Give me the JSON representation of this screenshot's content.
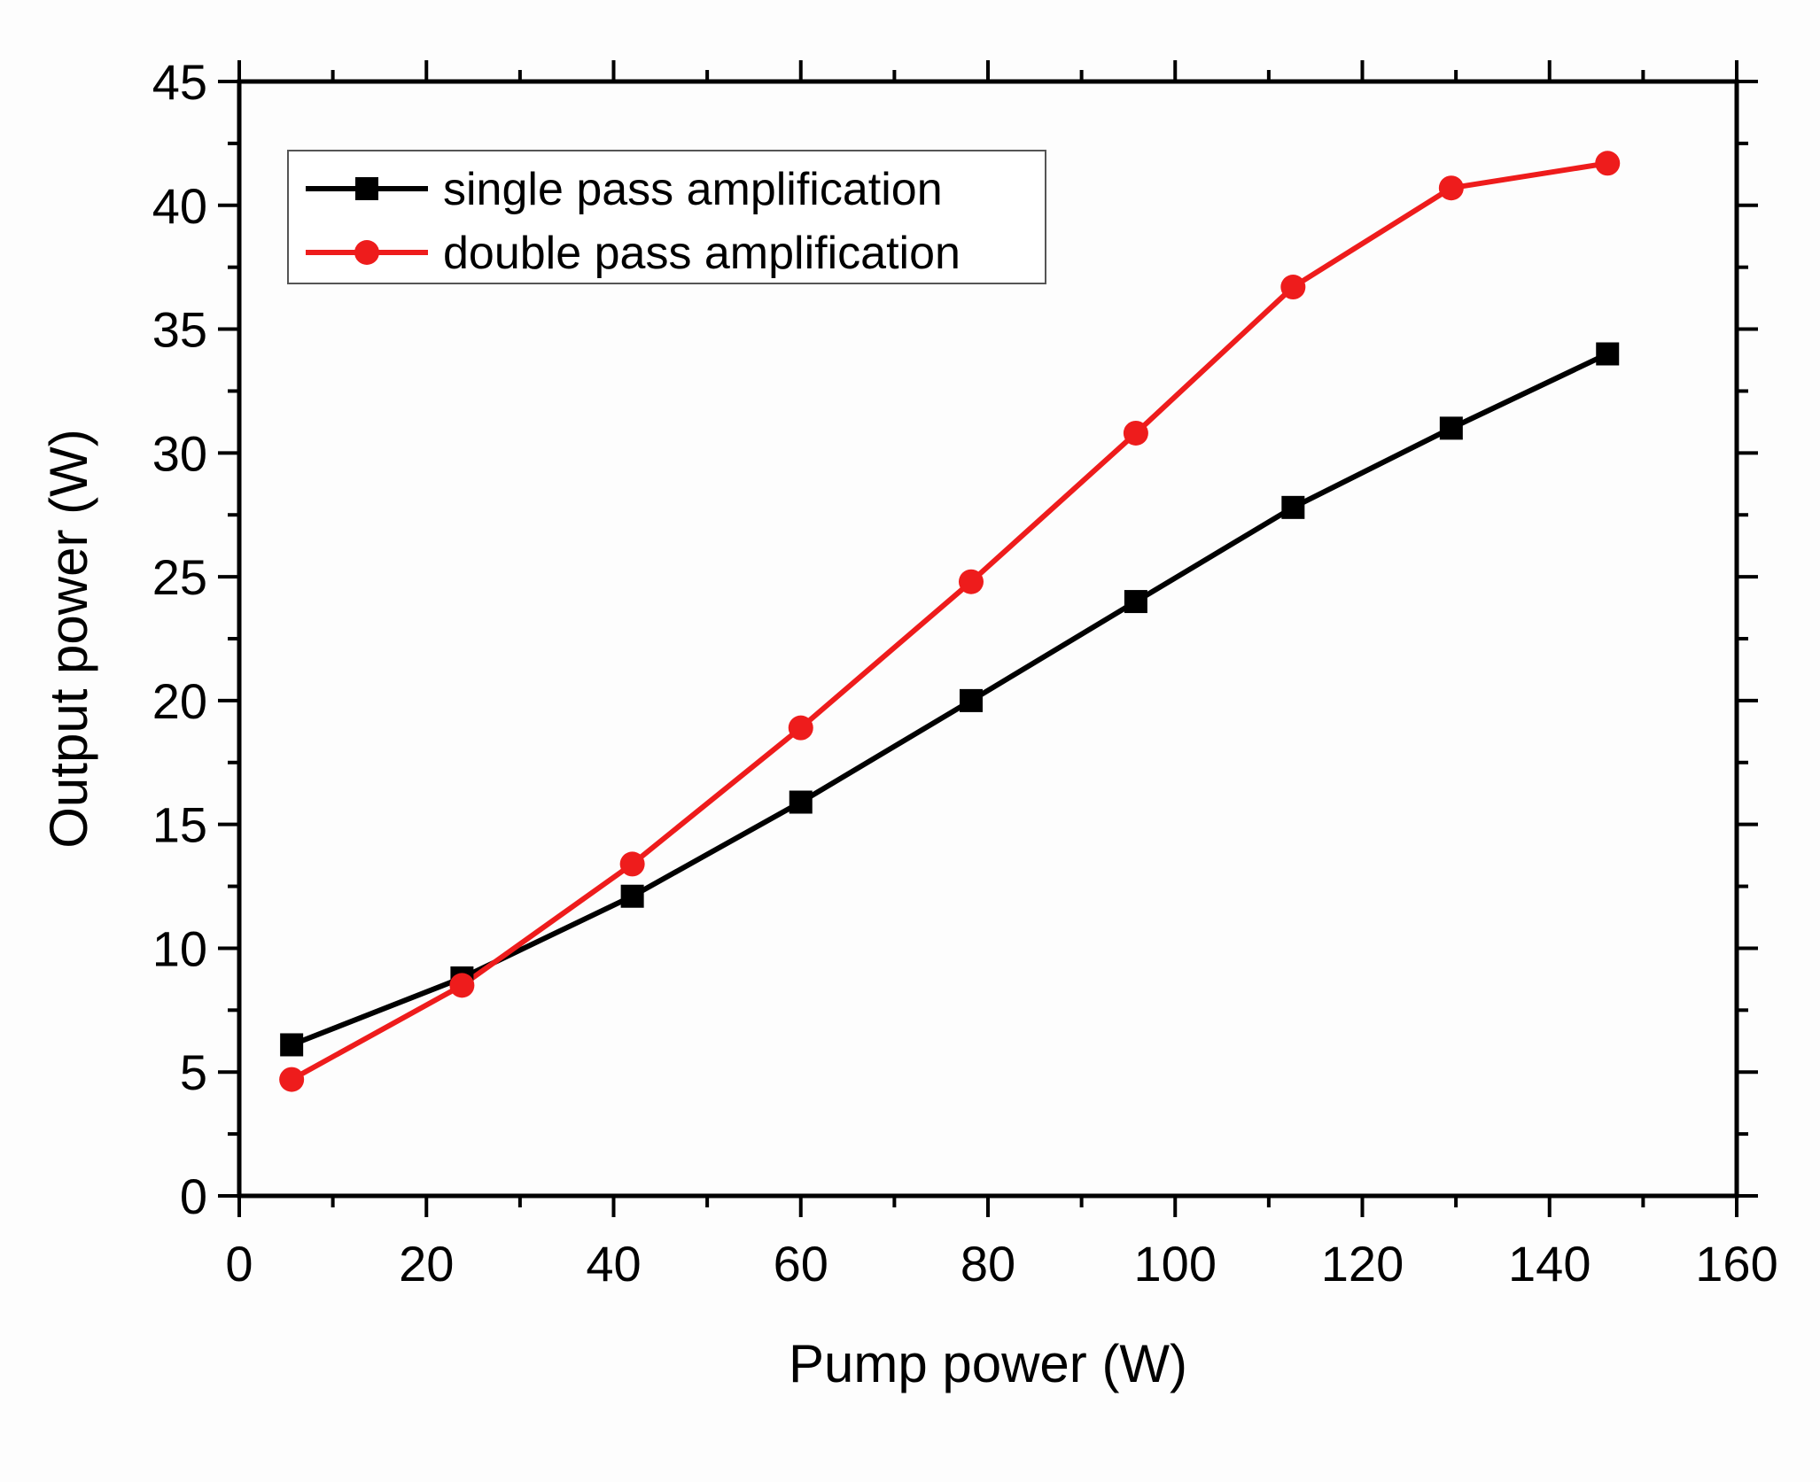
{
  "chart_data": {
    "type": "line",
    "title": "",
    "xlabel": "Pump power (W)",
    "ylabel": "Output power (W)",
    "xlim": [
      0,
      160
    ],
    "ylim": [
      0,
      45
    ],
    "xticks": [
      0,
      20,
      40,
      60,
      80,
      100,
      120,
      140,
      160
    ],
    "yticks": [
      0,
      5,
      10,
      15,
      20,
      25,
      30,
      35,
      40,
      45
    ],
    "xtick_labels": [
      "0",
      "20",
      "40",
      "60",
      "80",
      "100",
      "120",
      "140",
      "160"
    ],
    "ytick_labels": [
      "0",
      "5",
      "10",
      "15",
      "20",
      "25",
      "30",
      "35",
      "40",
      "45"
    ],
    "grid": false,
    "legend_position": "top-left",
    "series": [
      {
        "name": "single pass amplification",
        "color": "#000000",
        "marker": "square",
        "x": [
          5.6,
          23.8,
          42.0,
          60.0,
          78.2,
          95.8,
          112.6,
          129.5,
          146.2
        ],
        "y": [
          6.1,
          8.8,
          12.1,
          15.9,
          20.0,
          24.0,
          27.8,
          31.0,
          34.0
        ]
      },
      {
        "name": "double pass amplification",
        "color": "#ee1c1c",
        "marker": "circle",
        "x": [
          5.6,
          23.8,
          42.0,
          60.0,
          78.2,
          95.8,
          112.6,
          129.5,
          146.2
        ],
        "y": [
          4.7,
          8.5,
          13.4,
          18.9,
          24.8,
          30.8,
          36.7,
          40.7,
          41.7
        ]
      }
    ]
  }
}
